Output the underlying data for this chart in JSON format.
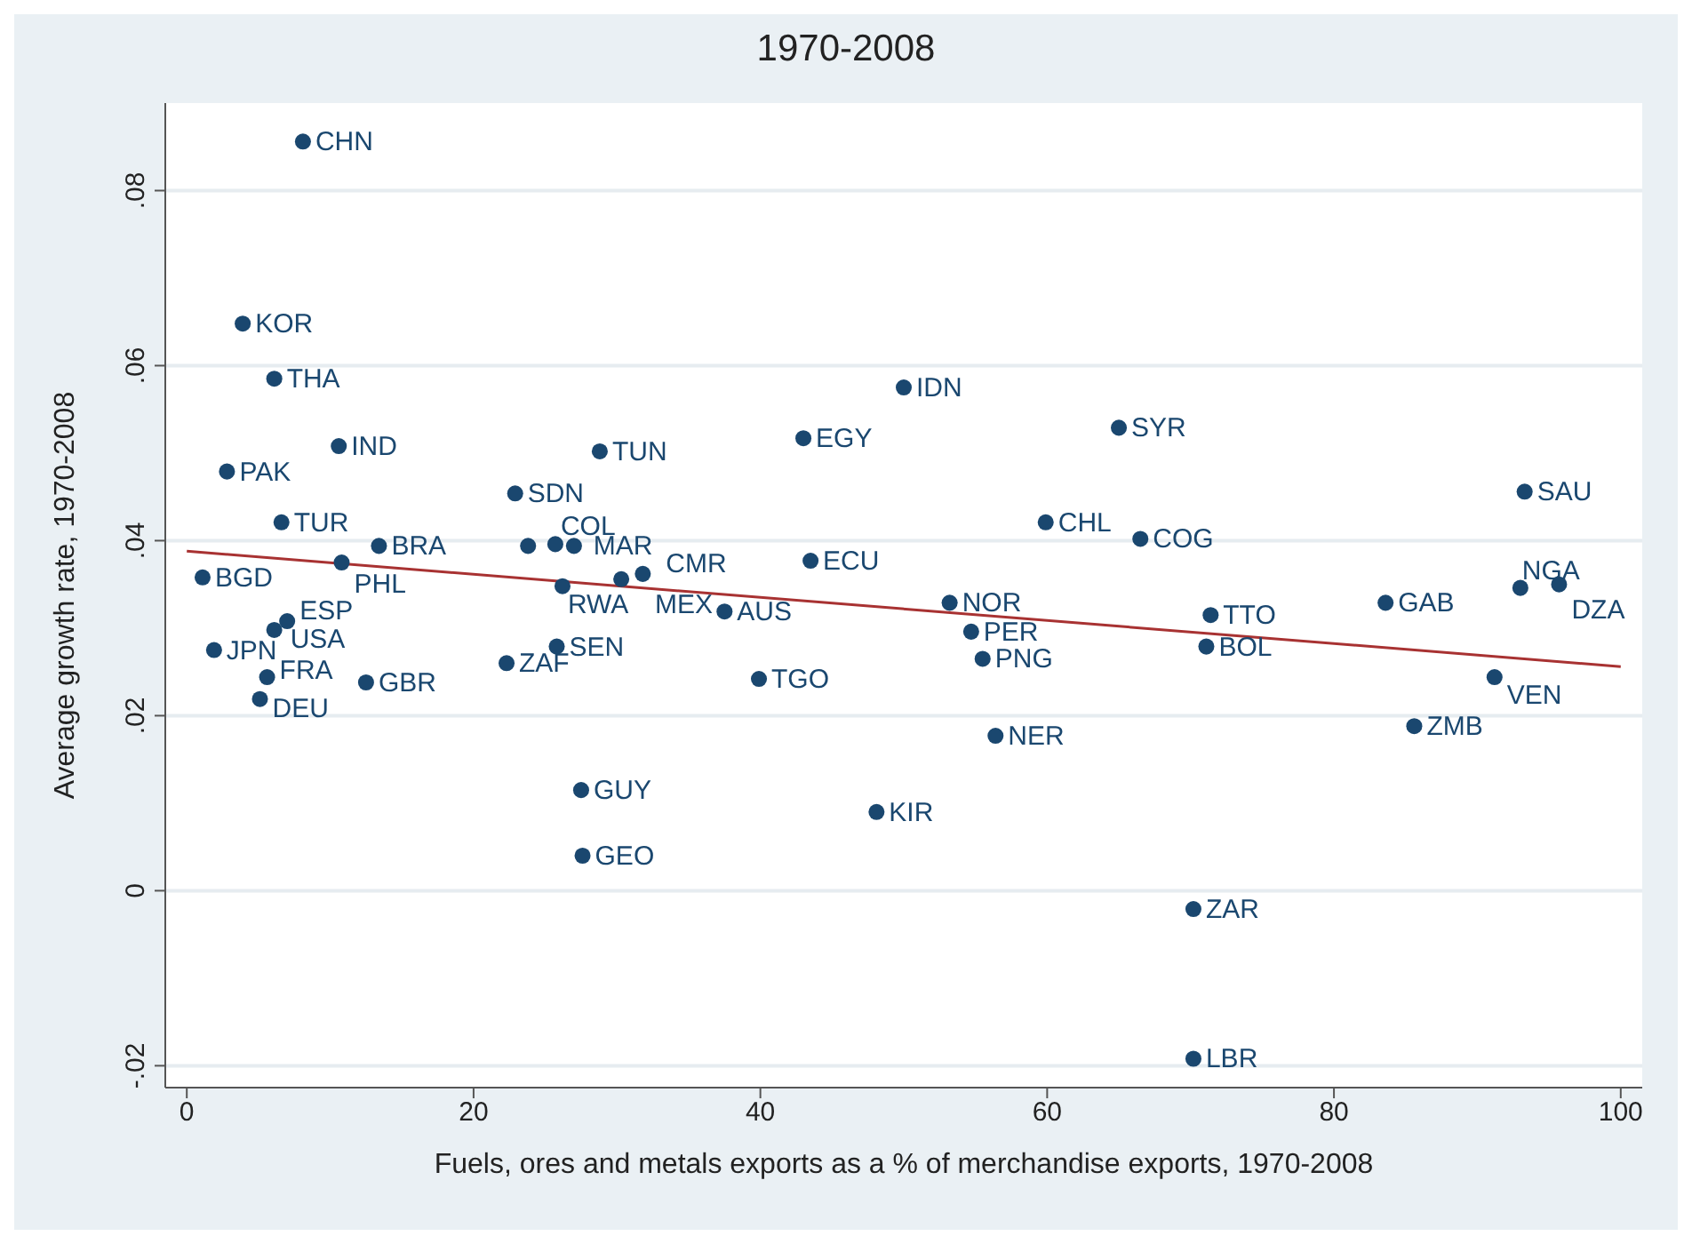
{
  "chart_data": {
    "type": "scatter",
    "title": "1970-2008",
    "xlabel": "Fuels, ores and metals exports as a % of merchandise exports, 1970-2008",
    "ylabel": "Average growth rate, 1970-2008",
    "xlim": [
      -1.5,
      101.5
    ],
    "xticks": [
      0,
      20,
      40,
      60,
      80,
      100
    ],
    "ylim": [
      -0.0225,
      0.09
    ],
    "yticks": [
      {
        "value": -0.02,
        "label": "-.02"
      },
      0,
      {
        "value": 0.02,
        "label": ".02"
      },
      {
        "value": 0.04,
        "label": ".04"
      },
      {
        "value": 0.06,
        "label": ".06"
      },
      {
        "value": 0.08,
        "label": ".08"
      }
    ],
    "grid": "y",
    "marker": "circle",
    "series": [
      {
        "color": "#1a476f",
        "x": [
          8.1,
          3.9,
          6.1,
          10.6,
          2.8,
          6.6,
          13.4,
          10.8,
          1.1,
          7.0,
          6.1,
          1.9,
          5.6,
          5.1,
          12.5,
          22.9,
          28.8,
          23.8,
          25.7,
          27.0,
          26.2,
          30.3,
          31.8,
          37.5,
          25.8,
          22.3,
          27.5,
          27.6,
          43.0,
          50.0,
          43.5,
          39.9,
          53.2,
          54.7,
          55.5,
          56.4,
          48.1,
          65.0,
          59.9,
          66.5,
          71.4,
          71.1,
          70.2,
          70.2,
          83.6,
          93.3,
          93.0,
          95.7,
          91.2,
          85.6
        ],
        "values": [
          0.0856,
          0.0648,
          0.0585,
          0.0508,
          0.0479,
          0.0421,
          0.0394,
          0.0375,
          0.0358,
          0.0308,
          0.0298,
          0.0275,
          0.0244,
          0.0219,
          0.0238,
          0.0454,
          0.0502,
          0.0394,
          0.0396,
          0.0394,
          0.0348,
          0.0356,
          0.0362,
          0.0319,
          0.0279,
          0.026,
          0.0115,
          0.004,
          0.0517,
          0.0575,
          0.0377,
          0.0242,
          0.0329,
          0.0296,
          0.0265,
          0.0177,
          0.009,
          0.0529,
          0.0421,
          0.0402,
          0.0315,
          0.0279,
          -0.0021,
          -0.0192,
          0.0329,
          0.0456,
          0.0346,
          0.035,
          0.0244,
          0.0188
        ]
      },
      {
        "type": "line",
        "color": "#a83232",
        "marker": "none",
        "x": [
          0,
          100
        ],
        "values": [
          0.0388,
          0.0256
        ]
      }
    ],
    "annotations": [
      {
        "text": "CHN",
        "x": 8.1,
        "y": 0.0856
      },
      {
        "text": "KOR",
        "x": 3.9,
        "y": 0.0648
      },
      {
        "text": "THA",
        "x": 6.1,
        "y": 0.0585
      },
      {
        "text": "IND",
        "x": 10.6,
        "y": 0.0508
      },
      {
        "text": "PAK",
        "x": 2.8,
        "y": 0.0479
      },
      {
        "text": "TUR",
        "x": 6.6,
        "y": 0.0421
      },
      {
        "text": "BRA",
        "x": 13.4,
        "y": 0.0394
      },
      {
        "text": "PHL",
        "x": 10.8,
        "y": 0.0375
      },
      {
        "text": "BGD",
        "x": 1.1,
        "y": 0.0358
      },
      {
        "text": "ESP",
        "x": 7.0,
        "y": 0.0308
      },
      {
        "text": "USA",
        "x": 6.1,
        "y": 0.0298
      },
      {
        "text": "JPN",
        "x": 1.9,
        "y": 0.0275
      },
      {
        "text": "FRA",
        "x": 5.6,
        "y": 0.0244
      },
      {
        "text": "DEU",
        "x": 5.1,
        "y": 0.0219
      },
      {
        "text": "GBR",
        "x": 12.5,
        "y": 0.0238
      },
      {
        "text": "SDN",
        "x": 22.9,
        "y": 0.0454
      },
      {
        "text": "TUN",
        "x": 28.8,
        "y": 0.0502
      },
      {
        "text": "COL",
        "x": 25.7,
        "y": 0.0396
      },
      {
        "text": "MAR",
        "x": 27.0,
        "y": 0.0394
      },
      {
        "text": "RWA",
        "x": 26.2,
        "y": 0.0348
      },
      {
        "text": "MEX",
        "x": 30.3,
        "y": 0.0356
      },
      {
        "text": "CMR",
        "x": 31.8,
        "y": 0.0362
      },
      {
        "text": "AUS",
        "x": 37.5,
        "y": 0.0319
      },
      {
        "text": "SEN",
        "x": 25.8,
        "y": 0.0279
      },
      {
        "text": "ZAF",
        "x": 22.3,
        "y": 0.026
      },
      {
        "text": "GUY",
        "x": 27.5,
        "y": 0.0115
      },
      {
        "text": "GEO",
        "x": 27.6,
        "y": 0.004
      },
      {
        "text": "EGY",
        "x": 43.0,
        "y": 0.0517
      },
      {
        "text": "IDN",
        "x": 50.0,
        "y": 0.0575
      },
      {
        "text": "ECU",
        "x": 43.5,
        "y": 0.0377
      },
      {
        "text": "TGO",
        "x": 39.9,
        "y": 0.0242
      },
      {
        "text": "NOR",
        "x": 53.2,
        "y": 0.0329
      },
      {
        "text": "PER",
        "x": 54.7,
        "y": 0.0296
      },
      {
        "text": "PNG",
        "x": 55.5,
        "y": 0.0265
      },
      {
        "text": "NER",
        "x": 56.4,
        "y": 0.0177
      },
      {
        "text": "KIR",
        "x": 48.1,
        "y": 0.009
      },
      {
        "text": "SYR",
        "x": 65.0,
        "y": 0.0529
      },
      {
        "text": "CHL",
        "x": 59.9,
        "y": 0.0421
      },
      {
        "text": "COG",
        "x": 66.5,
        "y": 0.0402
      },
      {
        "text": "TTO",
        "x": 71.4,
        "y": 0.0315
      },
      {
        "text": "BOL",
        "x": 71.1,
        "y": 0.0279
      },
      {
        "text": "ZAR",
        "x": 70.2,
        "y": -0.0021
      },
      {
        "text": "LBR",
        "x": 70.2,
        "y": -0.0192
      },
      {
        "text": "GAB",
        "x": 83.6,
        "y": 0.0329
      },
      {
        "text": "SAU",
        "x": 93.3,
        "y": 0.0456
      },
      {
        "text": "NGA",
        "x": 93.0,
        "y": 0.0346
      },
      {
        "text": "DZA",
        "x": 95.7,
        "y": 0.035
      },
      {
        "text": "VEN",
        "x": 91.2,
        "y": 0.0244
      },
      {
        "text": "ZMB",
        "x": 85.6,
        "y": 0.0188
      }
    ]
  }
}
